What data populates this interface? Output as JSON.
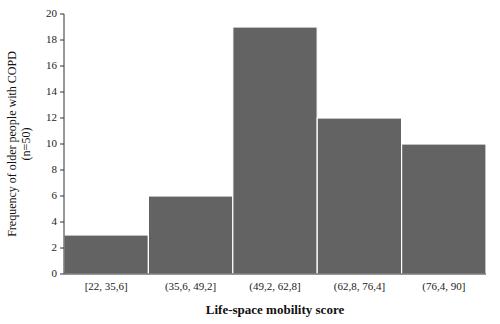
{
  "chart_data": {
    "type": "bar",
    "categories": [
      "[22, 35,6]",
      "(35,6, 49,2]",
      "(49,2, 62,8]",
      "(62,8, 76,4]",
      "(76,4, 90]"
    ],
    "values": [
      3,
      6,
      19,
      12,
      10
    ],
    "color": "#636363",
    "xlabel": "Life-space mobility score",
    "ylabel": "Frequency of older people with COPD\n(n=50)",
    "ylim": [
      0,
      20
    ],
    "yticks": [
      0,
      2,
      4,
      6,
      8,
      10,
      12,
      14,
      16,
      18,
      20
    ],
    "grid": false
  }
}
